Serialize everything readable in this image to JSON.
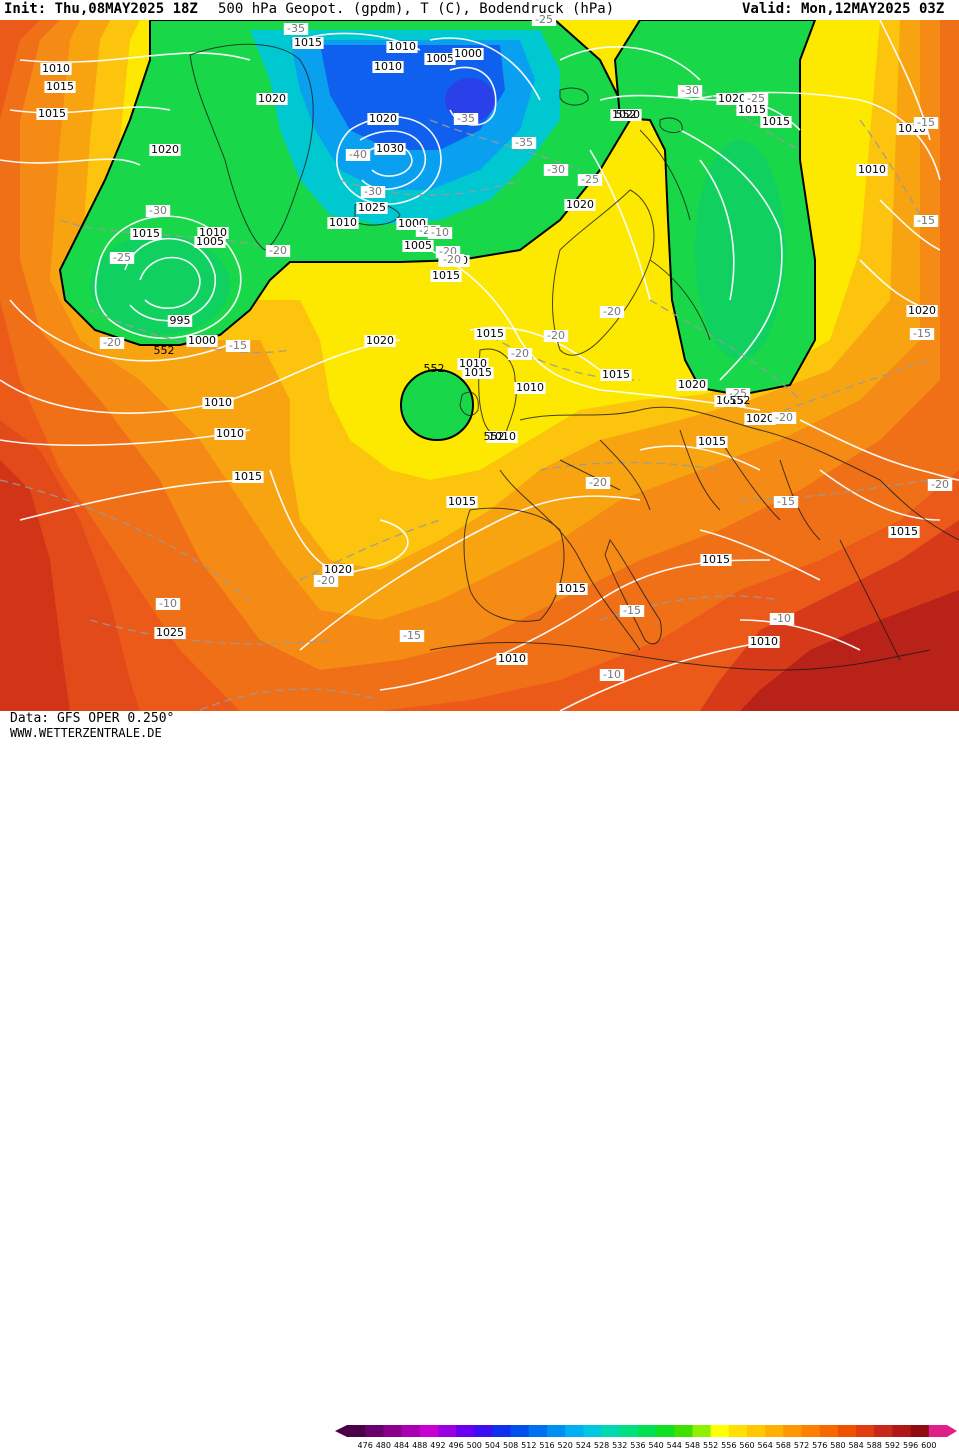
{
  "header": {
    "init_text": "Init: Thu,08MAY2025 18Z",
    "title_text": "500 hPa Geopot. (gpdm), T (C), Bodendruck (hPa)",
    "valid_text": "Valid: Mon,12MAY2025 03Z"
  },
  "footer": {
    "data_text": "Data: GFS OPER 0.250°",
    "site_text": "WWW.WETTERZENTRALE.DE"
  },
  "legend": {
    "values": [
      "476",
      "480",
      "484",
      "488",
      "492",
      "496",
      "500",
      "504",
      "508",
      "512",
      "516",
      "520",
      "524",
      "528",
      "532",
      "536",
      "540",
      "544",
      "548",
      "552",
      "556",
      "560",
      "564",
      "568",
      "572",
      "576",
      "580",
      "584",
      "588",
      "592",
      "596",
      "600"
    ],
    "colors": [
      "#4b0047",
      "#6a006a",
      "#8a008a",
      "#a900b0",
      "#c800d0",
      "#9a00e0",
      "#6a00f0",
      "#3a10f0",
      "#1030f0",
      "#0050f0",
      "#0070f0",
      "#0090f0",
      "#00b0f0",
      "#00c8e0",
      "#00d8b0",
      "#00e080",
      "#00e050",
      "#10e020",
      "#40e000",
      "#90f000",
      "#ffff00",
      "#ffe000",
      "#ffc800",
      "#ffb000",
      "#ff9800",
      "#ff8000",
      "#f86800",
      "#f05000",
      "#e03c10",
      "#c82818",
      "#b01818",
      "#900c10",
      "#e0208a"
    ]
  },
  "map": {
    "pressure_labels": [
      "1015",
      "1010",
      "1005",
      "1000",
      "1010",
      "1015",
      "1010",
      "1015",
      "1020",
      "1020",
      "1020",
      "1030",
      "1025",
      "1010",
      "1000",
      "1005",
      "1010",
      "1015",
      "1015",
      "1010",
      "1005",
      "995",
      "1000",
      "1020",
      "1015",
      "1010",
      "1020",
      "1015",
      "1010",
      "1020",
      "1015",
      "1010",
      "1020",
      "1020",
      "1015",
      "1015",
      "1015",
      "1015",
      "1010",
      "1010",
      "1015",
      "1010",
      "1010",
      "1015",
      "1020",
      "1025",
      "1020",
      "1015",
      "1010",
      "1015",
      "1015",
      "1010",
      "1020"
    ],
    "temperature_labels": [
      "-35",
      "-25",
      "-35",
      "-30",
      "-35",
      "-30",
      "-25",
      "-25",
      "-20",
      "-20",
      "-20",
      "-40",
      "-30",
      "-30",
      "-25",
      "-25",
      "-20",
      "-20",
      "-15",
      "-20",
      "-20",
      "-25",
      "-20",
      "-20",
      "-15",
      "-20",
      "-15",
      "-15",
      "-15",
      "-10",
      "-10",
      "-20",
      "-15",
      "-10",
      "-15",
      "-10"
    ],
    "contour_labels": [
      "552",
      "552",
      "552",
      "552",
      "552"
    ]
  }
}
